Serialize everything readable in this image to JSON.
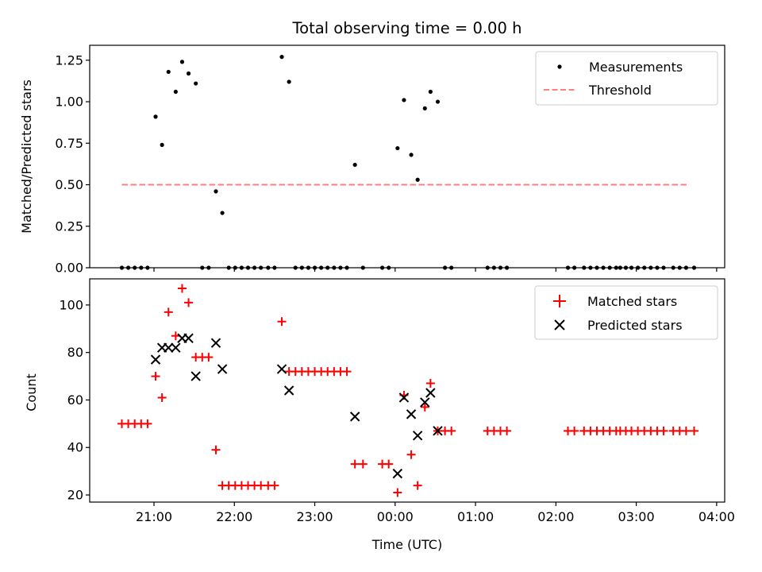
{
  "chart_data": [
    {
      "type": "scatter",
      "panel": "top",
      "title": "Total observing time = 0.00 h",
      "ylabel": "Matched/Predicted stars",
      "xlabel": "",
      "xlim": [
        20.2,
        28.1
      ],
      "ylim": [
        0,
        1.34
      ],
      "yticks": [
        0.0,
        0.25,
        0.5,
        0.75,
        1.0,
        1.25
      ],
      "ytick_labels": [
        "0.00",
        "0.25",
        "0.50",
        "0.75",
        "1.00",
        "1.25"
      ],
      "xticks": [
        21,
        22,
        23,
        24,
        25,
        26,
        27,
        28
      ],
      "grid": false,
      "legend_position": "top-right",
      "series": [
        {
          "name": "Measurements",
          "kind": "points",
          "color": "#000000",
          "x": [
            20.6,
            20.68,
            20.76,
            20.84,
            20.92,
            21.02,
            21.1,
            21.18,
            21.27,
            21.35,
            21.43,
            21.52,
            21.6,
            21.68,
            21.77,
            21.85,
            21.93,
            22.01,
            22.09,
            22.17,
            22.25,
            22.33,
            22.42,
            22.5,
            22.59,
            22.68,
            22.76,
            22.84,
            22.92,
            23.0,
            23.08,
            23.16,
            23.24,
            23.32,
            23.4,
            23.5,
            23.6,
            23.84,
            23.92,
            24.03,
            24.11,
            24.2,
            24.28,
            24.37,
            24.44,
            24.53,
            24.62,
            24.7,
            25.15,
            25.23,
            25.31,
            25.39,
            26.15,
            26.23,
            26.35,
            26.43,
            26.51,
            26.59,
            26.67,
            26.75,
            26.8,
            26.87,
            26.94,
            27.02,
            27.1,
            27.18,
            27.26,
            27.34,
            27.46,
            27.54,
            27.62,
            27.72
          ],
          "y": [
            0,
            0,
            0,
            0,
            0,
            0.91,
            0.74,
            1.18,
            1.06,
            1.24,
            1.17,
            1.11,
            0,
            0,
            0.46,
            0.33,
            0,
            0,
            0,
            0,
            0,
            0,
            0,
            0,
            1.27,
            1.12,
            0,
            0,
            0,
            0,
            0,
            0,
            0,
            0,
            0,
            0.62,
            0,
            0,
            0,
            0.72,
            1.01,
            0.68,
            0.53,
            0.96,
            1.06,
            1.0,
            0,
            0,
            0,
            0,
            0,
            0,
            0,
            0,
            0,
            0,
            0,
            0,
            0,
            0,
            0,
            0,
            0,
            0,
            0,
            0,
            0,
            0,
            0,
            0,
            0,
            0
          ]
        },
        {
          "name": "Threshold",
          "kind": "dashed-line",
          "color": "#ff7f7f",
          "x": [
            20.6,
            27.65
          ],
          "y": [
            0.5,
            0.5
          ]
        }
      ]
    },
    {
      "type": "scatter",
      "panel": "bottom",
      "title": "",
      "xlabel": "Time (UTC)",
      "ylabel": "Count",
      "xlim": [
        20.2,
        28.1
      ],
      "ylim": [
        17,
        111
      ],
      "yticks": [
        20,
        40,
        60,
        80,
        100
      ],
      "ytick_labels": [
        "20",
        "40",
        "60",
        "80",
        "100"
      ],
      "xticks": [
        21,
        22,
        23,
        24,
        25,
        26,
        27,
        28
      ],
      "xtick_labels": [
        "21:00",
        "22:00",
        "23:00",
        "00:00",
        "01:00",
        "02:00",
        "03:00",
        "04:00"
      ],
      "grid": false,
      "legend_position": "top-right",
      "series": [
        {
          "name": "Matched stars",
          "kind": "plus",
          "color": "#ff0000",
          "x": [
            20.6,
            20.68,
            20.76,
            20.84,
            20.92,
            21.02,
            21.1,
            21.18,
            21.27,
            21.35,
            21.43,
            21.52,
            21.6,
            21.68,
            21.77,
            21.85,
            21.93,
            22.01,
            22.09,
            22.17,
            22.25,
            22.33,
            22.42,
            22.5,
            22.59,
            22.68,
            22.76,
            22.84,
            22.92,
            23.0,
            23.08,
            23.16,
            23.24,
            23.32,
            23.4,
            23.5,
            23.6,
            23.84,
            23.92,
            24.03,
            24.11,
            24.2,
            24.28,
            24.37,
            24.44,
            24.53,
            24.62,
            24.7,
            25.15,
            25.23,
            25.31,
            25.39,
            26.15,
            26.23,
            26.35,
            26.43,
            26.51,
            26.59,
            26.67,
            26.75,
            26.8,
            26.87,
            26.94,
            27.02,
            27.1,
            27.18,
            27.26,
            27.34,
            27.46,
            27.54,
            27.62,
            27.72
          ],
          "y": [
            50,
            50,
            50,
            50,
            50,
            70,
            61,
            97,
            87,
            107,
            101,
            78,
            78,
            78,
            39,
            24,
            24,
            24,
            24,
            24,
            24,
            24,
            24,
            24,
            93,
            72,
            72,
            72,
            72,
            72,
            72,
            72,
            72,
            72,
            72,
            33,
            33,
            33,
            33,
            21,
            62,
            37,
            24,
            57,
            67,
            47,
            47,
            47,
            47,
            47,
            47,
            47,
            47,
            47,
            47,
            47,
            47,
            47,
            47,
            47,
            47,
            47,
            47,
            47,
            47,
            47,
            47,
            47,
            47,
            47,
            47,
            47
          ]
        },
        {
          "name": "Predicted stars",
          "kind": "x",
          "color": "#000000",
          "x": [
            21.02,
            21.1,
            21.18,
            21.27,
            21.35,
            21.43,
            21.52,
            21.77,
            21.85,
            22.59,
            22.68,
            23.5,
            24.03,
            24.11,
            24.2,
            24.28,
            24.37,
            24.44,
            24.53
          ],
          "y": [
            77,
            82,
            82,
            82,
            86,
            86,
            70,
            84,
            73,
            73,
            64,
            53,
            29,
            61,
            54,
            45,
            59,
            63,
            47
          ]
        }
      ]
    }
  ]
}
